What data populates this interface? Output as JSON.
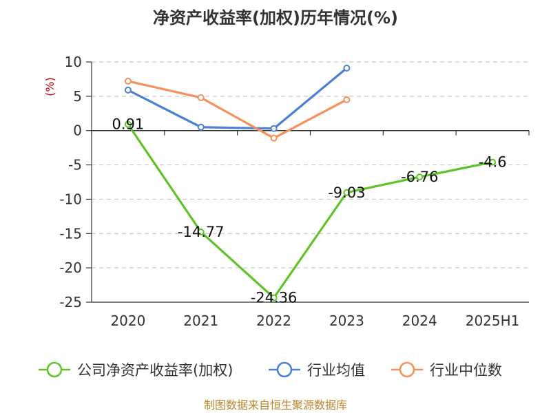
{
  "chart_data": {
    "type": "line",
    "title": "净资产收益率(加权)历年情况(%)",
    "ylabel": "(%)",
    "categories": [
      "2020",
      "2021",
      "2022",
      "2023",
      "2024",
      "2025H1"
    ],
    "ylim": [
      -25,
      10
    ],
    "yticks": [
      10,
      5,
      0,
      -5,
      -10,
      -15,
      -20,
      -25
    ],
    "grid": true,
    "legend_position": "bottom",
    "series": [
      {
        "name": "公司净资产收益率(加权)",
        "color": "#5fc328",
        "values": [
          0.91,
          -14.77,
          -24.36,
          -9.03,
          -6.76,
          -4.6
        ],
        "labels": [
          "0.91",
          "-14.77",
          "-24.36",
          "-9.03",
          "-6.76",
          "-4.6"
        ]
      },
      {
        "name": "行业均值",
        "color": "#4a7fd6",
        "values": [
          5.9,
          0.5,
          0.3,
          9.1,
          null,
          null
        ]
      },
      {
        "name": "行业中位数",
        "color": "#f5905a",
        "values": [
          7.2,
          4.8,
          -1.1,
          4.5,
          null,
          null
        ]
      }
    ],
    "source": "制图数据来自恒生聚源数据库"
  }
}
